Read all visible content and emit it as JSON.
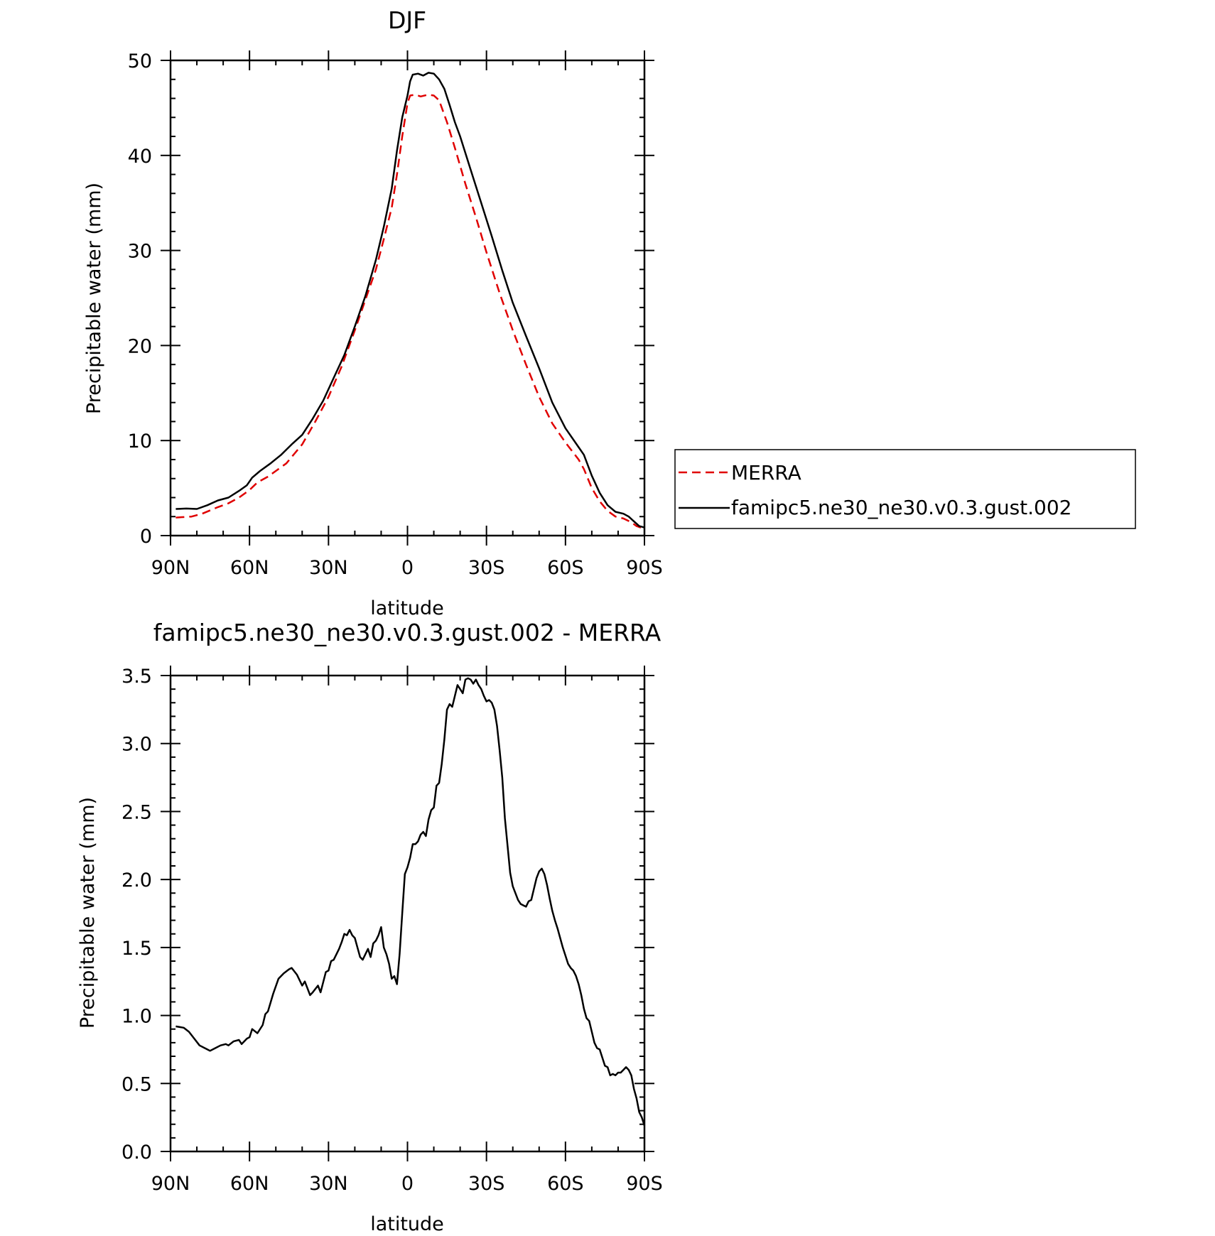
{
  "chart_data": [
    {
      "type": "line",
      "title": "DJF",
      "xlabel": "latitude",
      "ylabel": "Precipitable water (mm)",
      "xlim": [
        90,
        -90
      ],
      "ylim": [
        0,
        50
      ],
      "x_ticks": [
        90,
        60,
        30,
        0,
        -30,
        -60,
        -90
      ],
      "x_tick_labels": [
        "90N",
        "60N",
        "30N",
        "0",
        "30S",
        "60S",
        "90S"
      ],
      "y_ticks": [
        0,
        10,
        20,
        30,
        40,
        50
      ],
      "y_tick_labels": [
        "0",
        "10",
        "20",
        "30",
        "40",
        "50"
      ],
      "grid": false,
      "legend": "right",
      "series": [
        {
          "name": "MERRA",
          "color": "#e00000",
          "dash": "dashed",
          "points": [
            [
              88,
              1.9
            ],
            [
              82,
              2.0
            ],
            [
              78,
              2.3
            ],
            [
              72,
              3.0
            ],
            [
              68,
              3.4
            ],
            [
              64,
              4.0
            ],
            [
              60,
              4.8
            ],
            [
              57,
              5.6
            ],
            [
              53,
              6.2
            ],
            [
              50,
              6.8
            ],
            [
              46,
              7.6
            ],
            [
              40,
              9.6
            ],
            [
              35,
              12.0
            ],
            [
              30,
              14.6
            ],
            [
              25,
              17.8
            ],
            [
              20,
              21.6
            ],
            [
              15,
              25.6
            ],
            [
              12,
              28.0
            ],
            [
              9,
              31.2
            ],
            [
              6,
              34.5
            ],
            [
              4,
              38.0
            ],
            [
              2,
              42.0
            ],
            [
              0,
              45.5
            ],
            [
              -1,
              46.3
            ],
            [
              -3,
              46.4
            ],
            [
              -5,
              46.2
            ],
            [
              -8,
              46.4
            ],
            [
              -10,
              46.3
            ],
            [
              -12,
              45.8
            ],
            [
              -15,
              43.5
            ],
            [
              -18,
              40.8
            ],
            [
              -22,
              37.0
            ],
            [
              -26,
              33.5
            ],
            [
              -30,
              29.8
            ],
            [
              -35,
              25.5
            ],
            [
              -40,
              21.6
            ],
            [
              -45,
              18.0
            ],
            [
              -50,
              14.6
            ],
            [
              -55,
              11.8
            ],
            [
              -60,
              9.8
            ],
            [
              -65,
              8.0
            ],
            [
              -67,
              7.0
            ],
            [
              -70,
              5.0
            ],
            [
              -73,
              3.6
            ],
            [
              -76,
              2.6
            ],
            [
              -79,
              2.0
            ],
            [
              -82,
              1.8
            ],
            [
              -85,
              1.4
            ],
            [
              -87,
              1.0
            ],
            [
              -89,
              0.8
            ],
            [
              -90,
              0.7
            ]
          ]
        },
        {
          "name": "famipc5.ne30_ne30.v0.3.gust.002",
          "color": "#000000",
          "dash": "solid",
          "points": [
            [
              88,
              2.8
            ],
            [
              84,
              2.85
            ],
            [
              80,
              2.8
            ],
            [
              76,
              3.2
            ],
            [
              72,
              3.7
            ],
            [
              68,
              4.0
            ],
            [
              64,
              4.7
            ],
            [
              61,
              5.3
            ],
            [
              59,
              6.1
            ],
            [
              56,
              6.8
            ],
            [
              52,
              7.6
            ],
            [
              48,
              8.5
            ],
            [
              44,
              9.6
            ],
            [
              40,
              10.6
            ],
            [
              36,
              12.3
            ],
            [
              32,
              14.2
            ],
            [
              28,
              16.6
            ],
            [
              24,
              19.0
            ],
            [
              20,
              22.0
            ],
            [
              16,
              25.2
            ],
            [
              12,
              29.0
            ],
            [
              9,
              32.5
            ],
            [
              6,
              36.5
            ],
            [
              4,
              40.5
            ],
            [
              2,
              44.0
            ],
            [
              0,
              46.3
            ],
            [
              -1,
              47.8
            ],
            [
              -2,
              48.5
            ],
            [
              -4,
              48.6
            ],
            [
              -6,
              48.4
            ],
            [
              -8,
              48.7
            ],
            [
              -10,
              48.6
            ],
            [
              -12,
              48.0
            ],
            [
              -14,
              47.0
            ],
            [
              -16,
              45.3
            ],
            [
              -18,
              43.5
            ],
            [
              -20,
              42.0
            ],
            [
              -24,
              38.5
            ],
            [
              -28,
              35.0
            ],
            [
              -32,
              31.5
            ],
            [
              -36,
              27.9
            ],
            [
              -40,
              24.5
            ],
            [
              -45,
              21.0
            ],
            [
              -50,
              17.6
            ],
            [
              -55,
              14.0
            ],
            [
              -60,
              11.3
            ],
            [
              -65,
              9.3
            ],
            [
              -67,
              8.5
            ],
            [
              -70,
              6.3
            ],
            [
              -73,
              4.5
            ],
            [
              -76,
              3.2
            ],
            [
              -79,
              2.5
            ],
            [
              -82,
              2.3
            ],
            [
              -84,
              2.0
            ],
            [
              -86,
              1.5
            ],
            [
              -88,
              1.0
            ],
            [
              -90,
              0.85
            ]
          ]
        }
      ]
    },
    {
      "type": "line",
      "title": "famipc5.ne30_ne30.v0.3.gust.002 - MERRA",
      "xlabel": "latitude",
      "ylabel": "Precipitable water (mm)",
      "xlim": [
        90,
        -90
      ],
      "ylim": [
        0,
        3.5
      ],
      "x_ticks": [
        90,
        60,
        30,
        0,
        -30,
        -60,
        -90
      ],
      "x_tick_labels": [
        "90N",
        "60N",
        "30N",
        "0",
        "30S",
        "60S",
        "90S"
      ],
      "y_ticks": [
        0,
        0.5,
        1.0,
        1.5,
        2.0,
        2.5,
        3.0,
        3.5
      ],
      "y_tick_labels": [
        "0.0",
        "0.5",
        "1.0",
        "1.5",
        "2.0",
        "2.5",
        "3.0",
        "3.5"
      ],
      "grid": false,
      "series": [
        {
          "color": "#000000",
          "dash": "solid",
          "points": [
            [
              88,
              0.92
            ],
            [
              85,
              0.91
            ],
            [
              83,
              0.88
            ],
            [
              81,
              0.83
            ],
            [
              79,
              0.78
            ],
            [
              76,
              0.75
            ],
            [
              75,
              0.74
            ],
            [
              73,
              0.76
            ],
            [
              71,
              0.78
            ],
            [
              69,
              0.79
            ],
            [
              68,
              0.78
            ],
            [
              66,
              0.81
            ],
            [
              64,
              0.82
            ],
            [
              63,
              0.79
            ],
            [
              61,
              0.83
            ],
            [
              60,
              0.84
            ],
            [
              59,
              0.9
            ],
            [
              57,
              0.87
            ],
            [
              55,
              0.93
            ],
            [
              54,
              1.01
            ],
            [
              53,
              1.03
            ],
            [
              51,
              1.16
            ],
            [
              49,
              1.27
            ],
            [
              47,
              1.31
            ],
            [
              45,
              1.34
            ],
            [
              44,
              1.35
            ],
            [
              42,
              1.3
            ],
            [
              40,
              1.22
            ],
            [
              39,
              1.25
            ],
            [
              37,
              1.15
            ],
            [
              36,
              1.17
            ],
            [
              34,
              1.22
            ],
            [
              33,
              1.17
            ],
            [
              31,
              1.32
            ],
            [
              30,
              1.33
            ],
            [
              29,
              1.4
            ],
            [
              28,
              1.41
            ],
            [
              26,
              1.49
            ],
            [
              25,
              1.54
            ],
            [
              24,
              1.6
            ],
            [
              23,
              1.59
            ],
            [
              22,
              1.63
            ],
            [
              21,
              1.59
            ],
            [
              20,
              1.57
            ],
            [
              19,
              1.5
            ],
            [
              18,
              1.43
            ],
            [
              17,
              1.41
            ],
            [
              16,
              1.45
            ],
            [
              15,
              1.49
            ],
            [
              14,
              1.43
            ],
            [
              13,
              1.53
            ],
            [
              12,
              1.55
            ],
            [
              11,
              1.59
            ],
            [
              10,
              1.65
            ],
            [
              9,
              1.5
            ],
            [
              8,
              1.45
            ],
            [
              7,
              1.38
            ],
            [
              6,
              1.27
            ],
            [
              5,
              1.29
            ],
            [
              4,
              1.23
            ],
            [
              3,
              1.45
            ],
            [
              2,
              1.75
            ],
            [
              1,
              2.04
            ],
            [
              0,
              2.09
            ],
            [
              -1,
              2.16
            ],
            [
              -2,
              2.26
            ],
            [
              -3,
              2.26
            ],
            [
              -4,
              2.28
            ],
            [
              -5,
              2.33
            ],
            [
              -6,
              2.35
            ],
            [
              -7,
              2.32
            ],
            [
              -8,
              2.44
            ],
            [
              -9,
              2.51
            ],
            [
              -10,
              2.53
            ],
            [
              -11,
              2.69
            ],
            [
              -12,
              2.71
            ],
            [
              -13,
              2.85
            ],
            [
              -14,
              3.03
            ],
            [
              -15,
              3.25
            ],
            [
              -16,
              3.29
            ],
            [
              -17,
              3.27
            ],
            [
              -18,
              3.35
            ],
            [
              -19,
              3.43
            ],
            [
              -20,
              3.4
            ],
            [
              -21,
              3.37
            ],
            [
              -22,
              3.47
            ],
            [
              -23,
              3.48
            ],
            [
              -24,
              3.47
            ],
            [
              -25,
              3.44
            ],
            [
              -26,
              3.47
            ],
            [
              -27,
              3.43
            ],
            [
              -28,
              3.4
            ],
            [
              -29,
              3.35
            ],
            [
              -30,
              3.31
            ],
            [
              -31,
              3.32
            ],
            [
              -32,
              3.3
            ],
            [
              -33,
              3.25
            ],
            [
              -34,
              3.13
            ],
            [
              -35,
              2.95
            ],
            [
              -36,
              2.75
            ],
            [
              -37,
              2.45
            ],
            [
              -38,
              2.25
            ],
            [
              -39,
              2.05
            ],
            [
              -40,
              1.95
            ],
            [
              -41,
              1.9
            ],
            [
              -42,
              1.85
            ],
            [
              -43,
              1.82
            ],
            [
              -44,
              1.81
            ],
            [
              -45,
              1.8
            ],
            [
              -46,
              1.84
            ],
            [
              -47,
              1.85
            ],
            [
              -48,
              1.93
            ],
            [
              -49,
              2.01
            ],
            [
              -50,
              2.06
            ],
            [
              -51,
              2.08
            ],
            [
              -52,
              2.04
            ],
            [
              -53,
              1.96
            ],
            [
              -54,
              1.86
            ],
            [
              -55,
              1.77
            ],
            [
              -56,
              1.7
            ],
            [
              -57,
              1.64
            ],
            [
              -58,
              1.57
            ],
            [
              -59,
              1.5
            ],
            [
              -60,
              1.44
            ],
            [
              -61,
              1.38
            ],
            [
              -62,
              1.35
            ],
            [
              -63,
              1.33
            ],
            [
              -64,
              1.29
            ],
            [
              -65,
              1.23
            ],
            [
              -66,
              1.15
            ],
            [
              -67,
              1.05
            ],
            [
              -68,
              0.98
            ],
            [
              -69,
              0.96
            ],
            [
              -70,
              0.88
            ],
            [
              -71,
              0.8
            ],
            [
              -72,
              0.76
            ],
            [
              -73,
              0.75
            ],
            [
              -74,
              0.69
            ],
            [
              -75,
              0.63
            ],
            [
              -76,
              0.62
            ],
            [
              -77,
              0.56
            ],
            [
              -78,
              0.57
            ],
            [
              -79,
              0.56
            ],
            [
              -80,
              0.58
            ],
            [
              -81,
              0.58
            ],
            [
              -82,
              0.6
            ],
            [
              -83,
              0.62
            ],
            [
              -84,
              0.6
            ],
            [
              -85,
              0.56
            ],
            [
              -86,
              0.46
            ],
            [
              -87,
              0.39
            ],
            [
              -88,
              0.29
            ],
            [
              -89,
              0.25
            ],
            [
              -90,
              0.19
            ]
          ]
        }
      ]
    }
  ]
}
